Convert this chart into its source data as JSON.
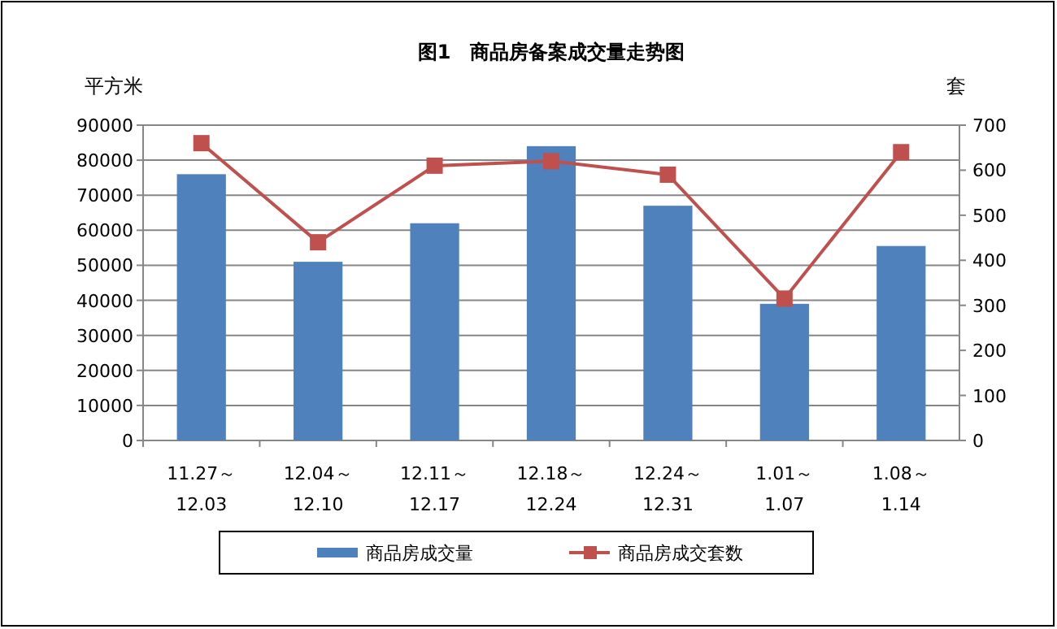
{
  "chart_data": {
    "type": "bar",
    "title": "图1　商品房备案成交量走势图",
    "ylabel": "平方米",
    "y2label": "套",
    "categories": [
      "11.27～\n12.03",
      "12.04～\n12.10",
      "12.11～\n12.17",
      "12.18～\n12.24",
      "12.24～\n12.31",
      "1.01～\n1.07",
      "1.08～\n1.14"
    ],
    "series": [
      {
        "name": "商品房成交量",
        "color": "#4f81bd",
        "values": [
          76000,
          51000,
          62000,
          84000,
          67000,
          39000,
          55500
        ]
      },
      {
        "name": "商品房成交套数",
        "type": "line",
        "axis": "y2",
        "color": "#c0504d",
        "marker": "square",
        "values": [
          660,
          440,
          610,
          620,
          590,
          315,
          640
        ]
      }
    ],
    "ylim": [
      0,
      90000
    ],
    "yticks": [
      0,
      10000,
      20000,
      30000,
      40000,
      50000,
      60000,
      70000,
      80000,
      90000
    ],
    "y2lim": [
      0,
      700
    ],
    "y2ticks": [
      0,
      100,
      200,
      300,
      400,
      500,
      600,
      700
    ],
    "grid": "y",
    "legend": "bottom"
  }
}
